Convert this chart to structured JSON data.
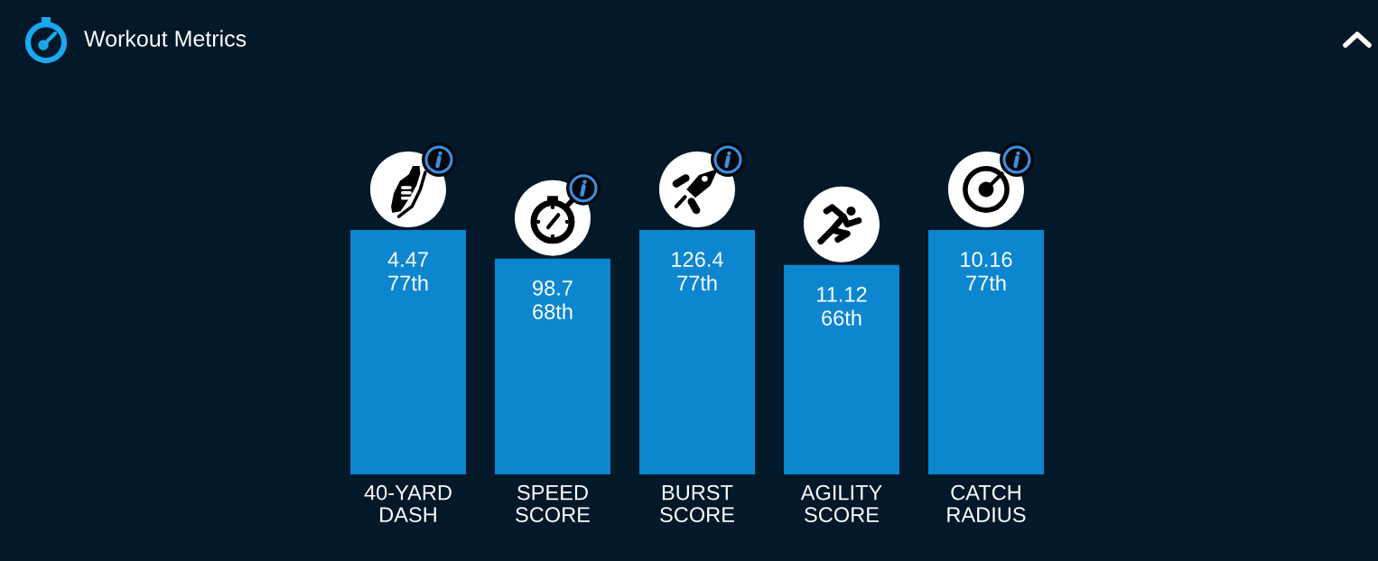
{
  "chart_data": {
    "type": "bar",
    "title": "Workout Metrics",
    "categories": [
      "40-YARD\nDASH",
      "SPEED\nSCORE",
      "BURST\nSCORE",
      "AGILITY\nSCORE",
      "CATCH\nRADIUS"
    ],
    "values": [
      77,
      68,
      77,
      66,
      77
    ],
    "value_labels": [
      "4.47\n77th",
      "98.7\n68th",
      "126.4\n77th",
      "11.12\n66th",
      "10.16\n77th"
    ],
    "color": "#0d86d0",
    "grid": false,
    "tick_labels": "x"
  }
}
